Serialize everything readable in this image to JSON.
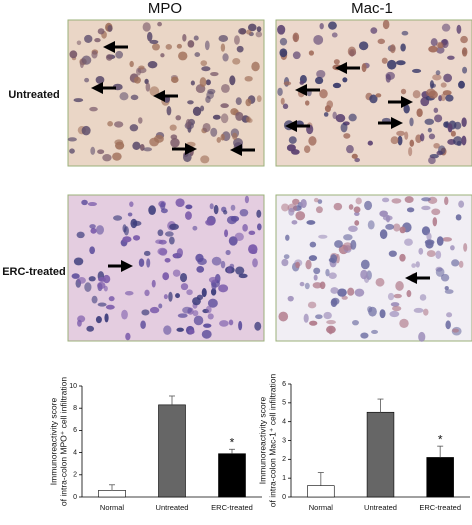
{
  "figure": {
    "column_labels": [
      "MPO",
      "Mac-1"
    ],
    "row_labels": [
      "Untreated",
      "ERC-treated"
    ]
  },
  "chart_data": [
    {
      "type": "bar",
      "ylabel": [
        "Immunoreactivity score",
        "of intra-colon MPO⁺ cell infiltration"
      ],
      "categories": [
        "Normal",
        "Untreated",
        "ERC-treated"
      ],
      "values": [
        0.6,
        8.3,
        3.9
      ],
      "errors": [
        0.5,
        0.8,
        0.4
      ],
      "colors": [
        "#ffffff",
        "#666666",
        "#000000"
      ],
      "annotations": [
        "*"
      ],
      "ylim": [
        0,
        10
      ],
      "yticks": [
        0,
        2,
        4,
        6,
        8,
        10
      ]
    },
    {
      "type": "bar",
      "ylabel": [
        "Immunoreactivity score",
        "of intra-colon Mac-1⁺ cell infiltration"
      ],
      "categories": [
        "Normal",
        "Untreated",
        "ERC-treated"
      ],
      "values": [
        0.6,
        4.5,
        2.1
      ],
      "errors": [
        0.7,
        0.7,
        0.6
      ],
      "colors": [
        "#ffffff",
        "#666666",
        "#000000"
      ],
      "annotations": [
        "*"
      ],
      "ylim": [
        0,
        6
      ],
      "yticks": [
        0,
        1,
        2,
        3,
        4,
        5,
        6
      ]
    }
  ]
}
